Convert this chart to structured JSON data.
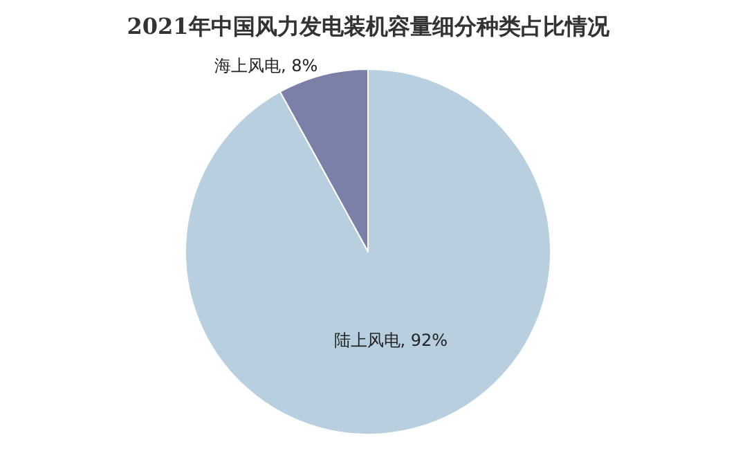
{
  "chart_data": {
    "type": "pie",
    "title": "2021年中国风力发电装机容量细分种类占比情况",
    "categories": [
      "海上风电",
      "陆上风电"
    ],
    "values": [
      8,
      92
    ],
    "colors": [
      "#7a80a8",
      "#b8cfe0"
    ],
    "value_labels": [
      "8%",
      "92%"
    ],
    "legend": false
  }
}
